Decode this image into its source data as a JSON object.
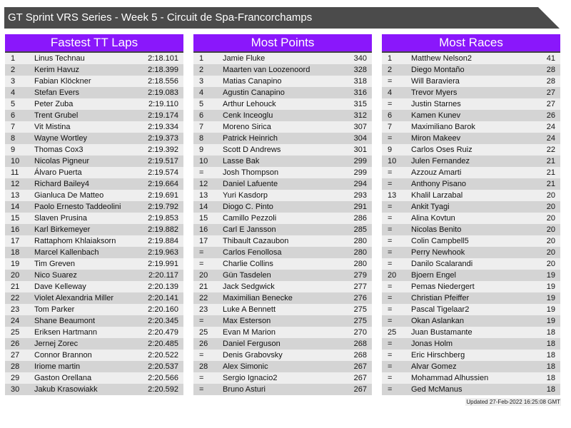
{
  "title": "GT Sprint VRS Series - Week 5 - Circuit de Spa-Francorchamps",
  "boards": [
    {
      "heading": "Fastest TT Laps",
      "rows": [
        [
          "1",
          "Linus Technau",
          "2:18.101"
        ],
        [
          "2",
          "Kerim Havuz",
          "2:18.399"
        ],
        [
          "3",
          "Fabian Klöckner",
          "2:18.556"
        ],
        [
          "4",
          "Stefan Evers",
          "2:19.083"
        ],
        [
          "5",
          "Peter Zuba",
          "2:19.110"
        ],
        [
          "6",
          "Trent Grubel",
          "2:19.174"
        ],
        [
          "7",
          "Vit Mistina",
          "2:19.334"
        ],
        [
          "8",
          "Wayne Wortley",
          "2:19.373"
        ],
        [
          "9",
          "Thomas Cox3",
          "2:19.392"
        ],
        [
          "10",
          "Nicolas Pigneur",
          "2:19.517"
        ],
        [
          "11",
          "Álvaro Puerta",
          "2:19.574"
        ],
        [
          "12",
          "Richard Bailey4",
          "2:19.664"
        ],
        [
          "13",
          "Gianluca De Matteo",
          "2:19.691"
        ],
        [
          "14",
          "Paolo Ernesto Taddeolini",
          "2:19.792"
        ],
        [
          "15",
          "Slaven Prusina",
          "2:19.853"
        ],
        [
          "16",
          "Karl Birkemeyer",
          "2:19.882"
        ],
        [
          "17",
          "Rattaphom Khlaiaksorn",
          "2:19.884"
        ],
        [
          "18",
          "Marcel Kallenbach",
          "2:19.963"
        ],
        [
          "19",
          "Tim Greven",
          "2:19.991"
        ],
        [
          "20",
          "Nico Suarez",
          "2:20.117"
        ],
        [
          "21",
          "Dave Kelleway",
          "2:20.139"
        ],
        [
          "22",
          "Violet Alexandria Miller",
          "2:20.141"
        ],
        [
          "23",
          "Tom Parker",
          "2:20.160"
        ],
        [
          "24",
          "Shane Beaumont",
          "2:20.345"
        ],
        [
          "25",
          "Eriksen Hartmann",
          "2:20.479"
        ],
        [
          "26",
          "Jernej Zorec",
          "2:20.485"
        ],
        [
          "27",
          "Connor Brannon",
          "2:20.522"
        ],
        [
          "28",
          "Iriome martin",
          "2:20.537"
        ],
        [
          "29",
          "Gaston Orellana",
          "2:20.566"
        ],
        [
          "30",
          "Jakub Krasowiakk",
          "2:20.592"
        ]
      ]
    },
    {
      "heading": "Most Points",
      "rows": [
        [
          "1",
          "Jamie Fluke",
          "340"
        ],
        [
          "2",
          "Maarten van Loozenoord",
          "328"
        ],
        [
          "3",
          "Matias Canapino",
          "318"
        ],
        [
          "4",
          "Agustin Canapino",
          "316"
        ],
        [
          "5",
          "Arthur Lehouck",
          "315"
        ],
        [
          "6",
          "Cenk Inceoglu",
          "312"
        ],
        [
          "7",
          "Moreno Sirica",
          "307"
        ],
        [
          "8",
          "Patrick Heinrich",
          "304"
        ],
        [
          "9",
          "Scott D Andrews",
          "301"
        ],
        [
          "10",
          "Lasse Bak",
          "299"
        ],
        [
          "=",
          "Josh Thompson",
          "299"
        ],
        [
          "12",
          "Daniel Lafuente",
          "294"
        ],
        [
          "13",
          "Yuri Kasdorp",
          "293"
        ],
        [
          "14",
          "Diogo C. Pinto",
          "291"
        ],
        [
          "15",
          "Camillo Pezzoli",
          "286"
        ],
        [
          "16",
          "Carl E Jansson",
          "285"
        ],
        [
          "17",
          "Thibault Cazaubon",
          "280"
        ],
        [
          "=",
          "Carlos Fenollosa",
          "280"
        ],
        [
          "=",
          "Charlie Collins",
          "280"
        ],
        [
          "20",
          "Gün Tasdelen",
          "279"
        ],
        [
          "21",
          "Jack Sedgwick",
          "277"
        ],
        [
          "22",
          "Maximilian Benecke",
          "276"
        ],
        [
          "23",
          "Luke A Bennett",
          "275"
        ],
        [
          "=",
          "Max Esterson",
          "275"
        ],
        [
          "25",
          "Evan M Marion",
          "270"
        ],
        [
          "26",
          "Daniel Ferguson",
          "268"
        ],
        [
          "=",
          "Denis Grabovsky",
          "268"
        ],
        [
          "28",
          "Alex Simonic",
          "267"
        ],
        [
          "=",
          "Sergio Ignacio2",
          "267"
        ],
        [
          "=",
          "Bruno Asturi",
          "267"
        ]
      ]
    },
    {
      "heading": "Most Races",
      "rows": [
        [
          "1",
          "Matthew Nelson2",
          "41"
        ],
        [
          "2",
          "Diego Montaño",
          "28"
        ],
        [
          "=",
          "Will Baraviera",
          "28"
        ],
        [
          "4",
          "Trevor Myers",
          "27"
        ],
        [
          "=",
          "Justin Starnes",
          "27"
        ],
        [
          "6",
          "Kamen Kunev",
          "26"
        ],
        [
          "7",
          "Maximiliano Barok",
          "24"
        ],
        [
          "=",
          "Miron Makeev",
          "24"
        ],
        [
          "9",
          "Carlos Oses Ruiz",
          "22"
        ],
        [
          "10",
          "Julen Fernandez",
          "21"
        ],
        [
          "=",
          "Azzouz Amarti",
          "21"
        ],
        [
          "=",
          "Anthony Pisano",
          "21"
        ],
        [
          "13",
          "Khalil Larzabal",
          "20"
        ],
        [
          "=",
          "Ankit Tyagi",
          "20"
        ],
        [
          "=",
          "Alina Kovtun",
          "20"
        ],
        [
          "=",
          "Nicolas Benito",
          "20"
        ],
        [
          "=",
          "Colin Campbell5",
          "20"
        ],
        [
          "=",
          "Perry Newhook",
          "20"
        ],
        [
          "=",
          "Danilo Scalarandi",
          "20"
        ],
        [
          "20",
          "Bjoern Engel",
          "19"
        ],
        [
          "=",
          "Pemas Niedergert",
          "19"
        ],
        [
          "=",
          "Christian Pfeiffer",
          "19"
        ],
        [
          "=",
          "Pascal Tigelaar2",
          "19"
        ],
        [
          "=",
          "Okan Aslankan",
          "19"
        ],
        [
          "25",
          "Juan Bustamante",
          "18"
        ],
        [
          "=",
          "Jonas Holm",
          "18"
        ],
        [
          "=",
          "Eric Hirschberg",
          "18"
        ],
        [
          "=",
          "Alvar Gomez",
          "18"
        ],
        [
          "=",
          "Mohammad Alhussien",
          "18"
        ],
        [
          "=",
          "Ged McManus",
          "18"
        ]
      ]
    }
  ],
  "updated": "Updated 27-Feb-2022 16:25:08 GMT",
  "colors": {
    "header": "#8a17fb",
    "titlebar": "#4b4b4b",
    "row_light": "#eeeeee",
    "row_dark": "#d4d4d4"
  }
}
